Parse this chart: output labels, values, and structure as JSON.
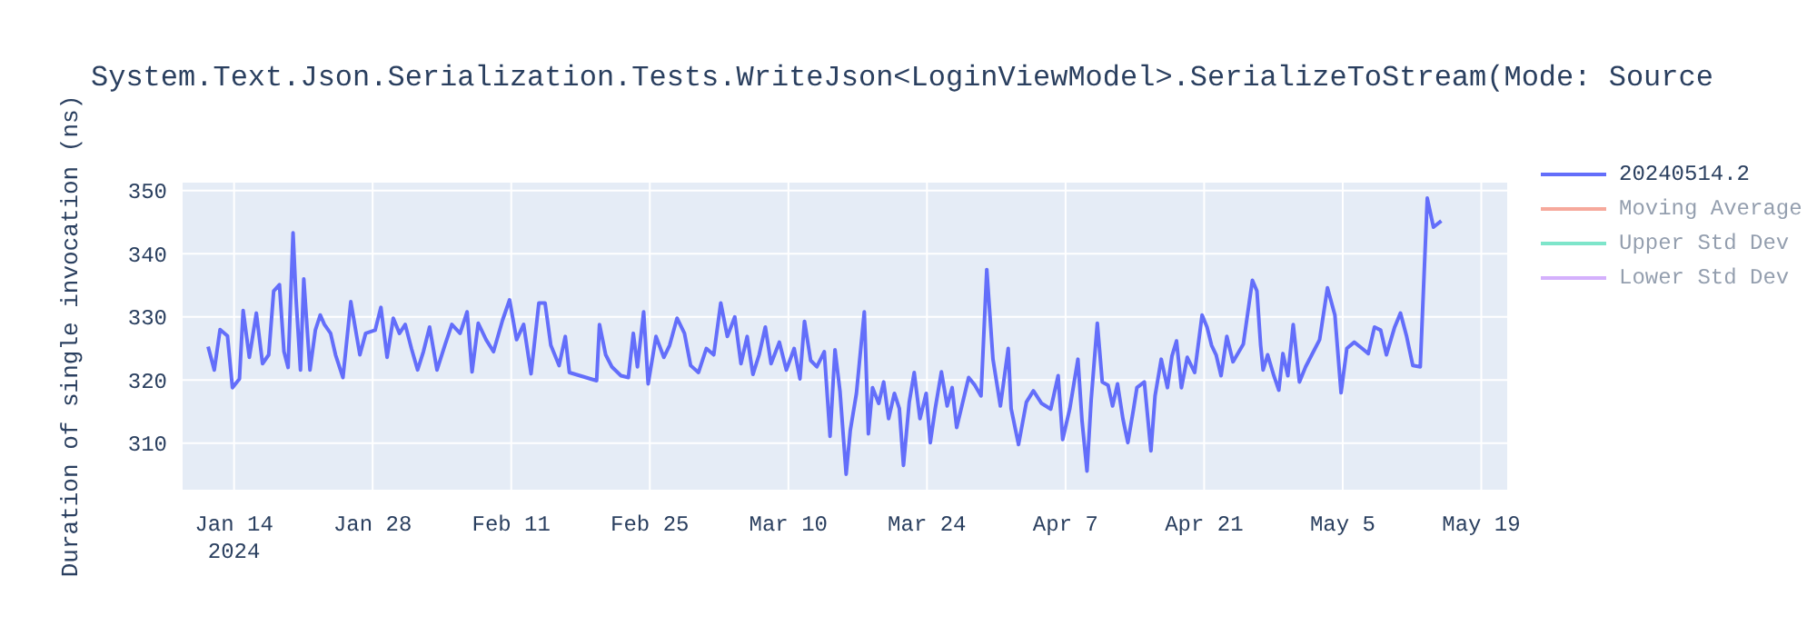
{
  "chart_data": {
    "type": "line",
    "title": "System.Text.Json.Serialization.Tests.WriteJson<LoginViewModel>.SerializeToStream(Mode: Source",
    "ylabel": "Duration of single invocation (ns)",
    "xlim": [
      "2024-01-08T17:00",
      "2024-05-21T17:00"
    ],
    "xticks": [
      {
        "value": "2024-01-14",
        "label": "Jan 14\n2024"
      },
      {
        "value": "2024-01-28",
        "label": "Jan 28"
      },
      {
        "value": "2024-02-11",
        "label": "Feb 11"
      },
      {
        "value": "2024-02-25",
        "label": "Feb 25"
      },
      {
        "value": "2024-03-10",
        "label": "Mar 10"
      },
      {
        "value": "2024-03-24",
        "label": "Mar 24"
      },
      {
        "value": "2024-04-07",
        "label": "Apr 7"
      },
      {
        "value": "2024-04-21",
        "label": "Apr 21"
      },
      {
        "value": "2024-05-05",
        "label": "May 5"
      },
      {
        "value": "2024-05-19",
        "label": "May 19"
      }
    ],
    "ylim": [
      302.5,
      351.4
    ],
    "yticks": [
      310,
      320,
      330,
      340,
      350
    ],
    "grid": true,
    "legend": "top right",
    "marker": "none",
    "line_style": "solid",
    "x": [
      "2024-01-11T09:00",
      "2024-01-12T00:00",
      "2024-01-12T14:00",
      "2024-01-13T08:00",
      "2024-01-13T20:00",
      "2024-01-14T13:00",
      "2024-01-14T22:00",
      "2024-01-15T13:00",
      "2024-01-16T06:00",
      "2024-01-16T21:00",
      "2024-01-17T12:00",
      "2024-01-18T00:00",
      "2024-01-18T14:00",
      "2024-01-19T01:00",
      "2024-01-19T11:00",
      "2024-01-19T23:00",
      "2024-01-20T06:00",
      "2024-01-20T17:00",
      "2024-01-21T01:00",
      "2024-01-21T16:00",
      "2024-01-22T05:00",
      "2024-01-22T17:00",
      "2024-01-23T03:00",
      "2024-01-23T18:00",
      "2024-01-24T06:00",
      "2024-01-25T00:00",
      "2024-01-25T19:00",
      "2024-01-26T17:00",
      "2024-01-27T07:00",
      "2024-01-28T06:00",
      "2024-01-28T20:00",
      "2024-01-29T11:00",
      "2024-01-30T02:00",
      "2024-01-30T17:00",
      "2024-01-31T07:00",
      "2024-01-31T22:00",
      "2024-02-01T13:00",
      "2024-02-02T03:00",
      "2024-02-02T18:00",
      "2024-02-03T12:00",
      "2024-02-04T07:00",
      "2024-02-05T00:00",
      "2024-02-05T20:00",
      "2024-02-06T13:00",
      "2024-02-07T01:00",
      "2024-02-07T16:00",
      "2024-02-08T11:00",
      "2024-02-09T05:00",
      "2024-02-10T03:00",
      "2024-02-10T20:00",
      "2024-02-11T13:00",
      "2024-02-12T06:00",
      "2024-02-13T00:00",
      "2024-02-13T19:00",
      "2024-02-14T10:00",
      "2024-02-15T00:00",
      "2024-02-15T20:00",
      "2024-02-16T11:00",
      "2024-02-16T21:00",
      "2024-02-19T15:00",
      "2024-02-19T22:00",
      "2024-02-20T13:00",
      "2024-02-21T04:00",
      "2024-02-22T02:00",
      "2024-02-22T20:00",
      "2024-02-23T08:00",
      "2024-02-23T18:00",
      "2024-02-24T09:00",
      "2024-02-24T20:00",
      "2024-02-25T15:00",
      "2024-02-26T10:00",
      "2024-02-27T00:00",
      "2024-02-27T18:00",
      "2024-02-28T12:00",
      "2024-02-29T03:00",
      "2024-02-29T22:00",
      "2024-03-01T17:00",
      "2024-03-02T11:00",
      "2024-03-03T04:00",
      "2024-03-03T20:00",
      "2024-03-04T14:00",
      "2024-03-05T05:00",
      "2024-03-05T20:00",
      "2024-03-06T10:00",
      "2024-03-07T01:00",
      "2024-03-07T16:00",
      "2024-03-08T06:00",
      "2024-03-09T02:00",
      "2024-03-09T19:00",
      "2024-03-10T14:00",
      "2024-03-11T04:00",
      "2024-03-11T15:00",
      "2024-03-12T06:00",
      "2024-03-12T21:00",
      "2024-03-13T15:00",
      "2024-03-14T05:00",
      "2024-03-14T17:00",
      "2024-03-15T05:00",
      "2024-03-15T20:00",
      "2024-03-16T06:00",
      "2024-03-16T21:00",
      "2024-03-17T16:00",
      "2024-03-18T02:00",
      "2024-03-18T12:00",
      "2024-03-19T03:00",
      "2024-03-19T15:00",
      "2024-03-20T03:00",
      "2024-03-20T17:00",
      "2024-03-21T05:00",
      "2024-03-21T15:00",
      "2024-03-22T05:00",
      "2024-03-22T17:00",
      "2024-03-23T07:00",
      "2024-03-23T22:00",
      "2024-03-24T08:00",
      "2024-03-24T20:00",
      "2024-03-25T11:00",
      "2024-03-26T01:00",
      "2024-03-26T13:00",
      "2024-03-27T00:00",
      "2024-03-27T14:00",
      "2024-03-28T05:00",
      "2024-03-28T20:00",
      "2024-03-29T11:00",
      "2024-03-30T01:00",
      "2024-03-30T16:00",
      "2024-03-31T10:00",
      "2024-04-01T05:00",
      "2024-04-01T12:00",
      "2024-04-02T06:00",
      "2024-04-03T01:00",
      "2024-04-03T18:00",
      "2024-04-04T14:00",
      "2024-04-05T12:00",
      "2024-04-06T06:00",
      "2024-04-06T17:00",
      "2024-04-07T10:00",
      "2024-04-08T06:00",
      "2024-04-08T16:00",
      "2024-04-09T04:00",
      "2024-04-09T14:00",
      "2024-04-10T05:00",
      "2024-04-10T17:00",
      "2024-04-11T07:00",
      "2024-04-11T18:00",
      "2024-04-12T06:00",
      "2024-04-12T19:00",
      "2024-04-13T07:00",
      "2024-04-13T21:00",
      "2024-04-14T05:00",
      "2024-04-14T23:00",
      "2024-04-15T15:00",
      "2024-04-16T01:00",
      "2024-04-16T16:00",
      "2024-04-17T07:00",
      "2024-04-17T18:00",
      "2024-04-18T05:00",
      "2024-04-18T17:00",
      "2024-04-19T07:00",
      "2024-04-20T01:00",
      "2024-04-20T19:00",
      "2024-04-21T07:00",
      "2024-04-21T18:00",
      "2024-04-22T05:00",
      "2024-04-22T17:00",
      "2024-04-23T07:00",
      "2024-04-23T22:00",
      "2024-04-24T23:00",
      "2024-04-25T21:00",
      "2024-04-26T08:00",
      "2024-04-26T17:00",
      "2024-04-26T23:00",
      "2024-04-27T10:00",
      "2024-04-28T01:00",
      "2024-04-28T13:00",
      "2024-04-28T23:00",
      "2024-04-29T11:00",
      "2024-04-30T00:00",
      "2024-04-30T15:00",
      "2024-05-01T06:00",
      "2024-05-01T21:00",
      "2024-05-02T16:00",
      "2024-05-03T11:00",
      "2024-05-04T05:00",
      "2024-05-04T20:00",
      "2024-05-05T10:00",
      "2024-05-06T04:00",
      "2024-05-06T23:00",
      "2024-05-07T14:00",
      "2024-05-08T05:00",
      "2024-05-08T20:00",
      "2024-05-09T10:00",
      "2024-05-10T06:00",
      "2024-05-10T20:00",
      "2024-05-11T11:00",
      "2024-05-12T02:00",
      "2024-05-12T20:00",
      "2024-05-13T13:00",
      "2024-05-14T04:00",
      "2024-05-14T23:00"
    ],
    "series": [
      {
        "name": "20240514.2",
        "color": "#636efa",
        "values": [
          325.3,
          321.6,
          328,
          327,
          318.8,
          320.2,
          331,
          323.6,
          330.6,
          322.6,
          324,
          334.1,
          335.1,
          324.5,
          322,
          343.3,
          333.2,
          321.6,
          336,
          321.6,
          327.9,
          330.3,
          328.8,
          327.4,
          324,
          320.4,
          332.4,
          324,
          327.4,
          327.9,
          331.5,
          323.6,
          329.8,
          327.4,
          328.8,
          325,
          321.6,
          324.5,
          328.4,
          321.6,
          325.5,
          328.8,
          327.4,
          330.8,
          321.3,
          329,
          326.4,
          324.5,
          329.5,
          332.7,
          326.4,
          328.8,
          321,
          332.2,
          332.2,
          325.5,
          322.3,
          326.9,
          321.2,
          319.9,
          328.8,
          324,
          322.1,
          320.7,
          320.4,
          327.4,
          322.1,
          330.8,
          319.4,
          326.9,
          323.6,
          325.5,
          329.8,
          327.4,
          322.3,
          321.2,
          325,
          324,
          332.2,
          326.9,
          330,
          322.6,
          326.9,
          320.9,
          324,
          328.4,
          322.6,
          326,
          321.6,
          325,
          320.2,
          329.3,
          323.1,
          322.1,
          324.5,
          311.1,
          324.8,
          318.3,
          305.1,
          312,
          317.9,
          330.8,
          311.5,
          318.8,
          316.3,
          319.7,
          313.9,
          317.9,
          315.5,
          306.5,
          316.5,
          321.2,
          313.9,
          317.9,
          310.1,
          315.5,
          321.3,
          315.9,
          318.8,
          312.5,
          316.3,
          320.4,
          319.2,
          317.5,
          337.5,
          323.3,
          315.9,
          325,
          315.5,
          309.8,
          316.5,
          318.3,
          316.3,
          315.4,
          320.7,
          310.6,
          315.4,
          323.3,
          313.5,
          305.6,
          316.8,
          329,
          319.7,
          319.2,
          315.9,
          319.4,
          313.9,
          310.1,
          315.5,
          318.8,
          319.7,
          308.8,
          317.5,
          323.3,
          318.8,
          323.8,
          326.2,
          318.8,
          323.6,
          321.2,
          330.3,
          328.4,
          325.5,
          324,
          320.7,
          326.9,
          322.9,
          325.7,
          335.8,
          334.1,
          325.5,
          321.6,
          324,
          320.7,
          318.4,
          324.2,
          320.7,
          328.8,
          319.7,
          322.1,
          324,
          326.4,
          334.6,
          330.3,
          318,
          325,
          326,
          325,
          324.2,
          328.4,
          327.9,
          324,
          328.4,
          330.6,
          326.9,
          322.3,
          322.1,
          348.8,
          344.2,
          345.2
        ]
      },
      {
        "name": "Moving Average",
        "color": "#ef553b",
        "values": [
          null,
          null,
          null,
          null,
          null,
          null,
          null,
          null,
          null,
          null,
          null,
          null,
          null,
          null,
          null,
          null,
          null,
          null,
          null,
          null,
          null,
          null,
          null,
          null,
          null,
          null,
          null,
          null,
          null,
          null,
          null,
          null,
          null,
          null,
          null,
          null,
          null,
          null,
          null,
          null,
          null,
          null,
          null,
          null,
          null,
          null,
          null,
          null,
          null,
          null,
          null,
          null,
          null,
          null,
          null,
          null,
          null,
          null,
          null,
          null,
          null,
          null,
          null,
          null,
          null,
          null,
          null,
          null,
          null,
          null,
          null,
          null,
          null,
          null,
          null,
          null,
          null,
          null,
          null,
          null,
          null,
          null,
          null,
          null,
          null,
          null,
          null,
          null,
          null,
          null,
          null,
          null,
          null,
          null,
          null,
          null,
          null,
          null,
          null,
          null,
          null,
          null,
          null,
          null,
          null,
          null,
          null,
          null,
          null,
          null,
          null,
          null,
          null,
          null,
          null,
          null,
          null,
          null,
          null,
          null,
          null,
          null,
          null,
          null,
          null,
          null,
          null,
          null,
          null,
          null,
          null,
          null,
          null,
          null,
          null,
          null,
          null,
          null,
          null,
          null,
          null,
          null,
          null,
          null,
          null,
          null,
          null,
          null,
          null,
          null,
          null,
          null,
          null,
          null,
          null,
          null,
          null,
          null,
          null,
          null,
          null,
          null,
          null,
          null,
          null,
          null,
          null,
          null,
          null,
          null,
          null,
          null,
          null,
          null,
          null,
          null,
          null,
          null,
          null,
          null,
          null,
          null,
          null,
          null,
          null,
          null,
          null,
          null,
          null,
          null,
          null,
          null,
          null,
          null,
          null,
          null,
          null,
          null,
          null,
          null
        ]
      },
      {
        "name": "Upper Std Dev",
        "color": "#00cc96",
        "values": [
          null,
          null,
          null,
          null,
          null,
          null,
          null,
          null,
          null,
          null,
          null,
          null,
          null,
          null,
          null,
          null,
          null,
          null,
          null,
          null,
          null,
          null,
          null,
          null,
          null,
          null,
          null,
          null,
          null,
          null,
          null,
          null,
          null,
          null,
          null,
          null,
          null,
          null,
          null,
          null,
          null,
          null,
          null,
          null,
          null,
          null,
          null,
          null,
          null,
          null,
          null,
          null,
          null,
          null,
          null,
          null,
          null,
          null,
          null,
          null,
          null,
          null,
          null,
          null,
          null,
          null,
          null,
          null,
          null,
          null,
          null,
          null,
          null,
          null,
          null,
          null,
          null,
          null,
          null,
          null,
          null,
          null,
          null,
          null,
          null,
          null,
          null,
          null,
          null,
          null,
          null,
          null,
          null,
          null,
          null,
          null,
          null,
          null,
          null,
          null,
          null,
          null,
          null,
          null,
          null,
          null,
          null,
          null,
          null,
          null,
          null,
          null,
          null,
          null,
          null,
          null,
          null,
          null,
          null,
          null,
          null,
          null,
          null,
          null,
          null,
          null,
          null,
          null,
          null,
          null,
          null,
          null,
          null,
          null,
          null,
          null,
          null,
          null,
          null,
          null,
          null,
          null,
          null,
          null,
          null,
          null,
          null,
          null,
          null,
          null,
          null,
          null,
          null,
          null,
          null,
          null,
          null,
          null,
          null,
          null,
          null,
          null,
          null,
          null,
          null,
          null,
          null,
          null,
          null,
          null,
          null,
          null,
          null,
          null,
          null,
          null,
          null,
          null,
          null,
          null,
          null,
          null,
          null,
          null,
          null,
          null,
          null,
          null,
          null,
          null,
          null,
          null,
          null,
          null,
          null,
          null,
          null,
          null,
          null,
          null
        ]
      },
      {
        "name": "Lower Std Dev",
        "color": "#ab63fa",
        "values": [
          null,
          null,
          null,
          null,
          null,
          null,
          null,
          null,
          null,
          null,
          null,
          null,
          null,
          null,
          null,
          null,
          null,
          null,
          null,
          null,
          null,
          null,
          null,
          null,
          null,
          null,
          null,
          null,
          null,
          null,
          null,
          null,
          null,
          null,
          null,
          null,
          null,
          null,
          null,
          null,
          null,
          null,
          null,
          null,
          null,
          null,
          null,
          null,
          null,
          null,
          null,
          null,
          null,
          null,
          null,
          null,
          null,
          null,
          null,
          null,
          null,
          null,
          null,
          null,
          null,
          null,
          null,
          null,
          null,
          null,
          null,
          null,
          null,
          null,
          null,
          null,
          null,
          null,
          null,
          null,
          null,
          null,
          null,
          null,
          null,
          null,
          null,
          null,
          null,
          null,
          null,
          null,
          null,
          null,
          null,
          null,
          null,
          null,
          null,
          null,
          null,
          null,
          null,
          null,
          null,
          null,
          null,
          null,
          null,
          null,
          null,
          null,
          null,
          null,
          null,
          null,
          null,
          null,
          null,
          null,
          null,
          null,
          null,
          null,
          null,
          null,
          null,
          null,
          null,
          null,
          null,
          null,
          null,
          null,
          null,
          null,
          null,
          null,
          null,
          null,
          null,
          null,
          null,
          null,
          null,
          null,
          null,
          null,
          null,
          null,
          null,
          null,
          null,
          null,
          null,
          null,
          null,
          null,
          null,
          null,
          null,
          null,
          null,
          null,
          null,
          null,
          null,
          null,
          null,
          null,
          null,
          null,
          null,
          null,
          null,
          null,
          null,
          null,
          null,
          null,
          null,
          null,
          null,
          null,
          null,
          null,
          null,
          null,
          null,
          null,
          null,
          null,
          null,
          null,
          null,
          null,
          null,
          null,
          null,
          null
        ]
      }
    ]
  }
}
